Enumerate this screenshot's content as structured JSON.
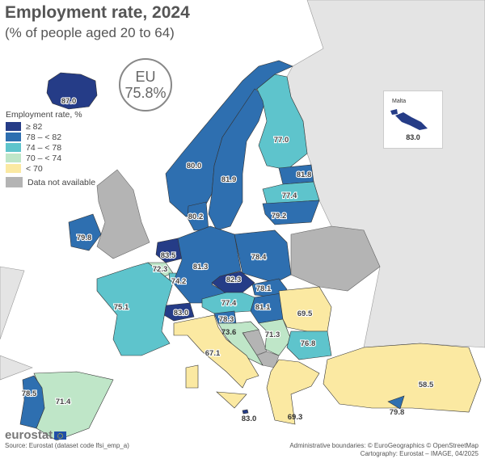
{
  "header": {
    "title": "Employment rate, 2024",
    "subtitle": "(% of people aged 20 to 64)"
  },
  "eu_badge": {
    "label": "EU",
    "value": "75.8%"
  },
  "legend": {
    "title": "Employment rate, %",
    "classes": [
      {
        "label": "≥ 82",
        "color": "#253c87"
      },
      {
        "label": "78 – < 82",
        "color": "#2e6fb0"
      },
      {
        "label": "74 – < 78",
        "color": "#5ec4cc"
      },
      {
        "label": "70 – < 74",
        "color": "#bfe6c8"
      },
      {
        "label": "< 70",
        "color": "#fbe9a2"
      }
    ],
    "na": {
      "label": "Data not available",
      "color": "#b4b4b4"
    }
  },
  "colors": {
    "sea": "#ffffff",
    "non_eu_land": "#e4e4e4",
    "border": "#555555"
  },
  "countries": [
    {
      "id": "IS",
      "value": "87.0",
      "class": 0
    },
    {
      "id": "NO",
      "value": "80.0",
      "class": 1
    },
    {
      "id": "SE",
      "value": "81.9",
      "class": 1
    },
    {
      "id": "FI",
      "value": "77.0",
      "class": 2
    },
    {
      "id": "EE",
      "value": "81.8",
      "class": 1
    },
    {
      "id": "LV",
      "value": "77.4",
      "class": 2
    },
    {
      "id": "LT",
      "value": "79.2",
      "class": 1
    },
    {
      "id": "DK",
      "value": "80.2",
      "class": 1
    },
    {
      "id": "IE",
      "value": "79.8",
      "class": 1
    },
    {
      "id": "NL",
      "value": "83.5",
      "class": 0
    },
    {
      "id": "BE",
      "value": "72.3",
      "class": 3
    },
    {
      "id": "LU",
      "value": "74.2",
      "class": 2
    },
    {
      "id": "DE",
      "value": "81.3",
      "class": 1
    },
    {
      "id": "PL",
      "value": "78.4",
      "class": 1
    },
    {
      "id": "CZ",
      "value": "82.3",
      "class": 0
    },
    {
      "id": "SK",
      "value": "78.1",
      "class": 1
    },
    {
      "id": "AT",
      "value": "77.4",
      "class": 2
    },
    {
      "id": "HU",
      "value": "81.1",
      "class": 1
    },
    {
      "id": "CH",
      "value": "83.0",
      "class": 0
    },
    {
      "id": "SI",
      "value": "78.3",
      "class": 1
    },
    {
      "id": "HR",
      "value": "73.6",
      "class": 3
    },
    {
      "id": "RS",
      "value": "71.3",
      "class": 3
    },
    {
      "id": "RO",
      "value": "69.5",
      "class": 4
    },
    {
      "id": "BG",
      "value": "76.8",
      "class": 2
    },
    {
      "id": "FR",
      "value": "75.1",
      "class": 2
    },
    {
      "id": "IT",
      "value": "67.1",
      "class": 4
    },
    {
      "id": "ES",
      "value": "71.4",
      "class": 3
    },
    {
      "id": "PT",
      "value": "78.5",
      "class": 1
    },
    {
      "id": "EL",
      "value": "69.3",
      "class": 4
    },
    {
      "id": "TR",
      "value": "58.5",
      "class": 4
    },
    {
      "id": "CY",
      "value": "79.8",
      "class": 1
    },
    {
      "id": "MT",
      "value": "83.0",
      "class": 0
    }
  ],
  "inset": {
    "label": "Malta",
    "value": "83.0"
  },
  "footer": {
    "logo": "eurostat",
    "source": "Source: Eurostat (dataset code lfsi_emp_a)",
    "boundaries": "Administrative boundaries: © EuroGeographics © OpenStreetMap",
    "cartography": "Cartography: Eurostat – IMAGE, 04/2025"
  }
}
